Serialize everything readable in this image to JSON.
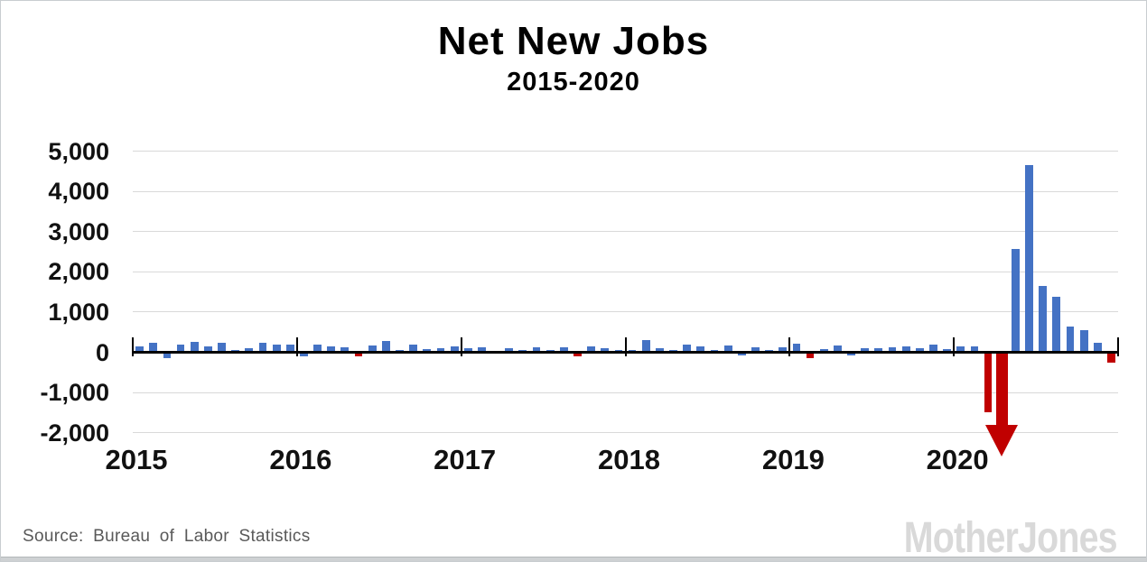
{
  "header": {
    "title": "Net New Jobs",
    "subtitle": "2015-2020"
  },
  "footer": {
    "source": "Source:  Bureau of Labor Statistics",
    "logo": "MotherJones"
  },
  "chart_data": {
    "type": "bar",
    "title": "Net New Jobs",
    "subtitle": "2015-2020",
    "ylabel": "",
    "xlabel": "",
    "ylim": [
      -2000,
      5000
    ],
    "grid": "horizontal",
    "legend": "none",
    "ytick_labels": [
      "5,000",
      "4,000",
      "3,000",
      "2,000",
      "1,000",
      "0",
      "-1,000",
      "-2,000"
    ],
    "ytick_values": [
      5000,
      4000,
      3000,
      2000,
      1000,
      0,
      -1000,
      -2000
    ],
    "x_year_labels": [
      "2015",
      "2016",
      "2017",
      "2018",
      "2019",
      "2020"
    ],
    "start_month": "2015-01",
    "values_by_year": {
      "2015": [
        150,
        225,
        -90,
        200,
        260,
        140,
        245,
        55,
        95,
        245,
        185,
        185
      ],
      "2016": [
        -45,
        190,
        150,
        125,
        -55,
        175,
        275,
        60,
        185,
        75,
        90,
        135
      ],
      "2017": [
        105,
        120,
        40,
        110,
        60,
        125,
        45,
        120,
        -60,
        155,
        105,
        45
      ],
      "2018": [
        50,
        300,
        105,
        50,
        200,
        140,
        45,
        170,
        -20,
        125,
        60,
        120
      ],
      "2019": [
        210,
        -90,
        75,
        165,
        -15,
        95,
        95,
        125,
        135,
        105,
        180,
        75
      ],
      "2020": [
        135,
        155,
        -1455,
        null,
        2570,
        4650,
        1660,
        1380,
        630,
        540,
        235,
        -215
      ]
    },
    "red_months": [
      "2016-05",
      "2017-09",
      "2019-02",
      "2020-03",
      "2020-04",
      "2020-12"
    ],
    "offscale_month": "2020-04",
    "offscale_direction": "down",
    "offscale_note": "red arrow extends below -2,000 axis minimum",
    "colors": {
      "bar_positive": "#4472c4",
      "bar_negative_highlight": "#c00000",
      "gridline": "#d9d9d9",
      "axis": "#000000",
      "title_text": "#000000",
      "source_text": "#595959",
      "logo_text": "#d9d9d9"
    }
  }
}
